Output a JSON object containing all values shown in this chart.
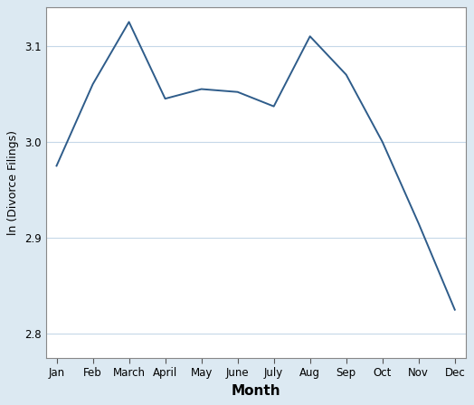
{
  "months": [
    "Jan",
    "Feb",
    "March",
    "April",
    "May",
    "June",
    "July",
    "Aug",
    "Sep",
    "Oct",
    "Nov",
    "Dec"
  ],
  "values": [
    2.975,
    3.06,
    3.125,
    3.045,
    3.055,
    3.052,
    3.037,
    3.11,
    3.07,
    3.0,
    2.915,
    2.825
  ],
  "xlabel": "Month",
  "ylabel": "ln (Divorce Filings)",
  "ylim": [
    2.775,
    3.14
  ],
  "yticks": [
    2.8,
    2.9,
    3.0,
    3.1
  ],
  "line_color": "#2e5c8a",
  "background_color": "#dce9f2",
  "plot_bg_color": "#ffffff",
  "line_width": 1.4,
  "grid_color": "#c5d8e8",
  "tick_color": "#333333",
  "xlabel_fontsize": 11,
  "ylabel_fontsize": 9,
  "tick_fontsize": 8.5
}
